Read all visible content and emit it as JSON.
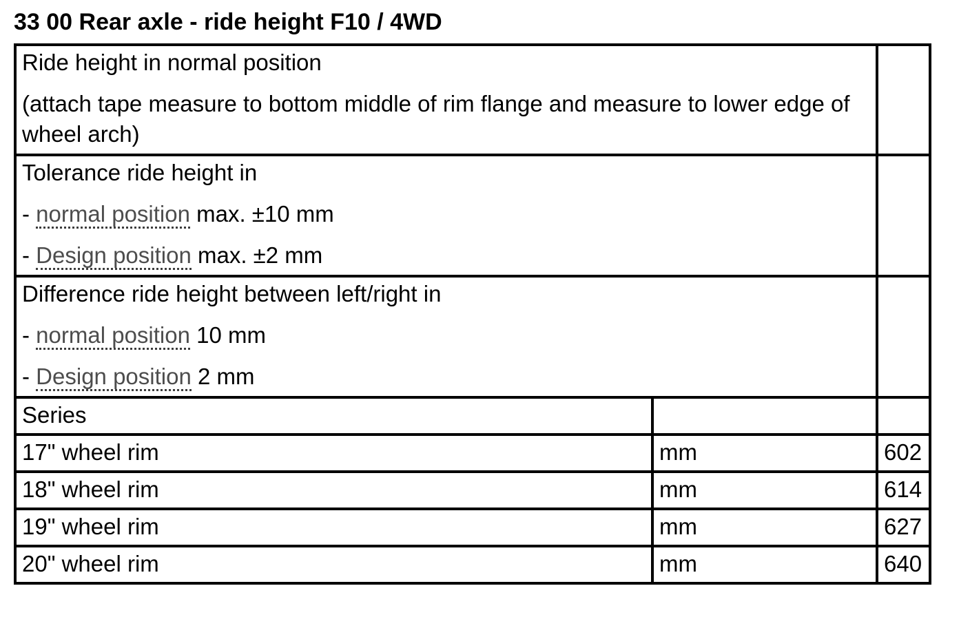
{
  "title": "33 00 Rear axle - ride height F10 / 4WD",
  "colors": {
    "border": "#000000",
    "text": "#000000",
    "link_gray": "#4d4d4d"
  },
  "table": {
    "row_ride_height": {
      "line1": "Ride height in normal position",
      "line2": "(attach tape measure to bottom middle of rim flange and measure to lower edge of wheel arch)"
    },
    "row_tolerance": {
      "heading": "Tolerance ride height in",
      "items": [
        {
          "prefix": "-",
          "link": "normal position",
          "text": "max. ±10 mm"
        },
        {
          "prefix": "-",
          "link": "Design position",
          "text": "max. ±2 mm"
        }
      ]
    },
    "row_difference": {
      "heading": "Difference ride height between left/right in",
      "items": [
        {
          "prefix": "-",
          "link": "normal position",
          "text": "10 mm"
        },
        {
          "prefix": "-",
          "link": "Design position",
          "text": "2 mm"
        }
      ]
    },
    "series_label": "Series",
    "rim_rows": [
      {
        "label": "17\" wheel rim",
        "unit": "mm",
        "value": "602"
      },
      {
        "label": "18\" wheel rim",
        "unit": "mm",
        "value": "614"
      },
      {
        "label": "19\" wheel rim",
        "unit": "mm",
        "value": "627"
      },
      {
        "label": "20\" wheel rim",
        "unit": "mm",
        "value": "640"
      }
    ]
  }
}
